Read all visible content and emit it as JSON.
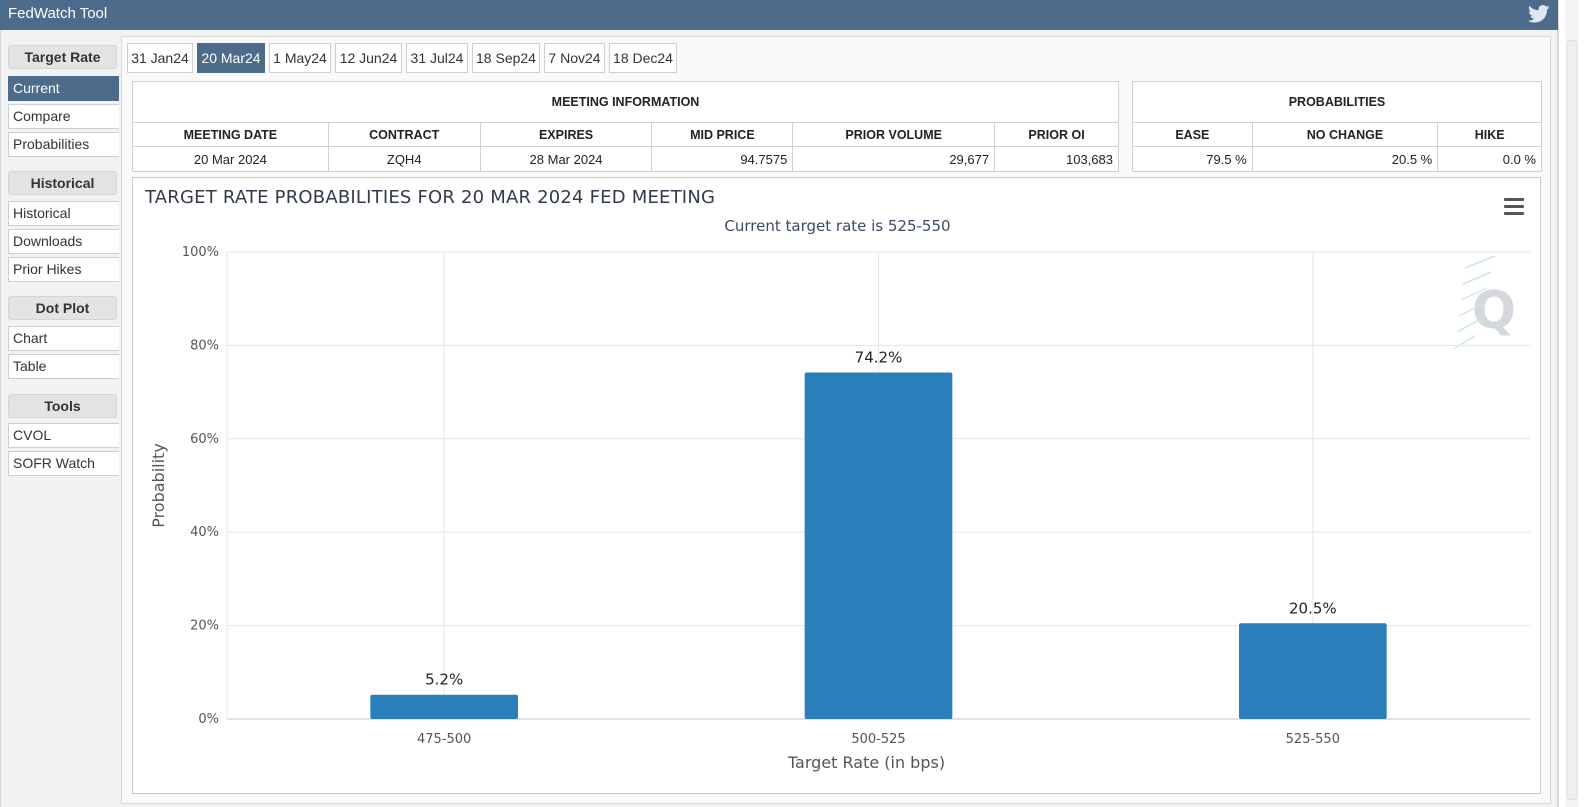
{
  "app": {
    "title": "FedWatch Tool"
  },
  "sidebar": {
    "groups": [
      {
        "header": "Target Rate",
        "items": [
          "Current",
          "Compare",
          "Probabilities"
        ]
      },
      {
        "header": "Historical",
        "items": [
          "Historical",
          "Downloads",
          "Prior Hikes"
        ]
      },
      {
        "header": "Dot Plot",
        "items": [
          "Chart",
          "Table"
        ]
      },
      {
        "header": "Tools",
        "items": [
          "CVOL",
          "SOFR Watch"
        ]
      }
    ],
    "active_item": "Current"
  },
  "tabs": [
    "31 Jan24",
    "20 Mar24",
    "1 May24",
    "12 Jun24",
    "31 Jul24",
    "18 Sep24",
    "7 Nov24",
    "18 Dec24"
  ],
  "active_tab": "20 Mar24",
  "meeting_info": {
    "title": "MEETING INFORMATION",
    "headers": [
      "MEETING DATE",
      "CONTRACT",
      "EXPIRES",
      "MID PRICE",
      "PRIOR VOLUME",
      "PRIOR OI"
    ],
    "values": [
      "20 Mar 2024",
      "ZQH4",
      "28 Mar 2024",
      "94.7575",
      "29,677",
      "103,683"
    ]
  },
  "probabilities": {
    "title": "PROBABILITIES",
    "headers": [
      "EASE",
      "NO CHANGE",
      "HIKE"
    ],
    "values": [
      "79.5 %",
      "20.5 %",
      "0.0 %"
    ]
  },
  "chart_data": {
    "type": "bar",
    "title": "TARGET RATE PROBABILITIES FOR 20 MAR 2024 FED MEETING",
    "subtitle": "Current target rate is 525-550",
    "xlabel": "Target Rate (in bps)",
    "ylabel": "Probability",
    "categories": [
      "475-500",
      "500-525",
      "525-550"
    ],
    "values": [
      5.2,
      74.2,
      20.5
    ],
    "data_labels": [
      "5.2%",
      "74.2%",
      "20.5%"
    ],
    "ylim": [
      0,
      100
    ],
    "yticks": [
      "0%",
      "20%",
      "40%",
      "60%",
      "80%",
      "100%"
    ],
    "grid": true,
    "bar_color": "#2a7fba",
    "watermark": "Q"
  },
  "colors": {
    "accent": "#4d6b8b",
    "bar": "#2a7fba"
  }
}
